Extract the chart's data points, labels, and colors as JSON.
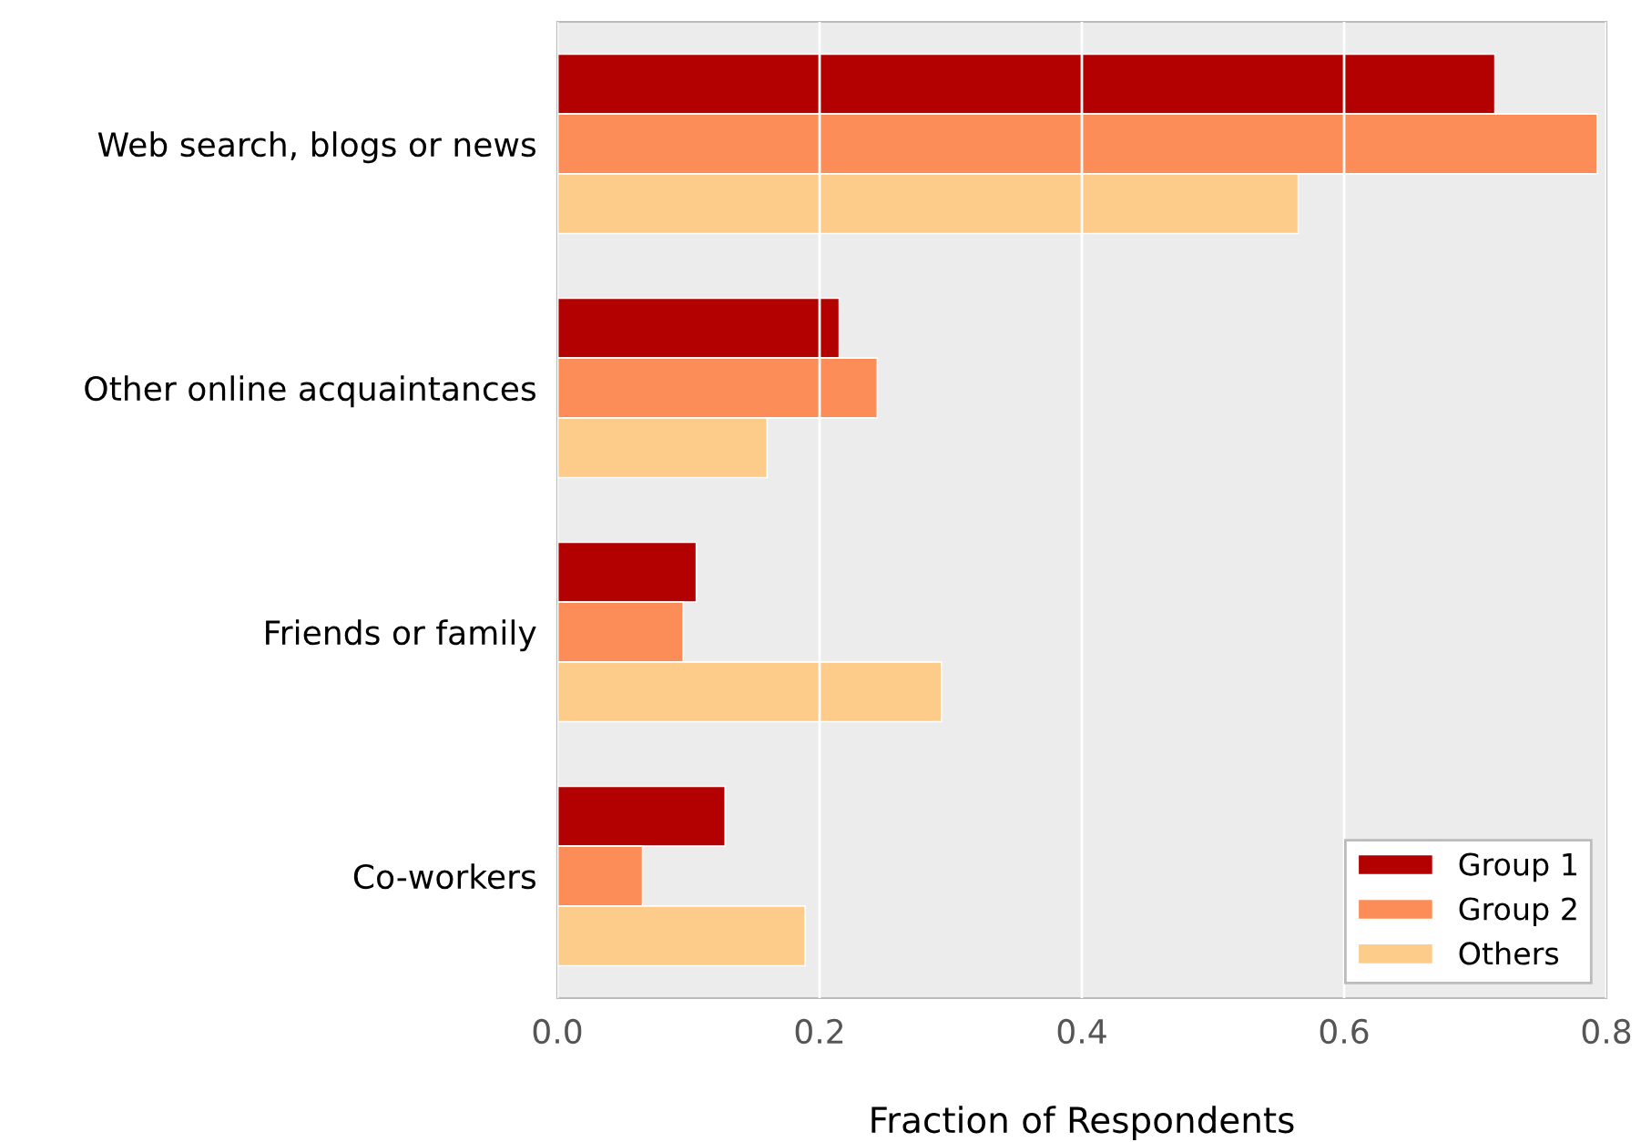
{
  "chart_data": {
    "type": "bar",
    "orientation": "horizontal",
    "xlabel": "Fraction of Respondents",
    "categories": [
      "Web search, blogs or news",
      "Other online acquaintances",
      "Friends or family",
      "Co-workers"
    ],
    "series": [
      {
        "name": "Group 1",
        "color": "#b30000",
        "values": [
          0.715,
          0.215,
          0.106,
          0.128
        ]
      },
      {
        "name": "Group 2",
        "color": "#fc8d59",
        "values": [
          0.793,
          0.244,
          0.096,
          0.065
        ]
      },
      {
        "name": "Others",
        "color": "#fdcc8a",
        "values": [
          0.565,
          0.16,
          0.293,
          0.189
        ]
      }
    ],
    "xlim": [
      0,
      0.8
    ],
    "xticks": [
      {
        "value": 0,
        "label": "0.0"
      },
      0.2,
      0.4,
      0.6,
      0.8
    ],
    "grid": "x",
    "legend": "bottom right"
  }
}
